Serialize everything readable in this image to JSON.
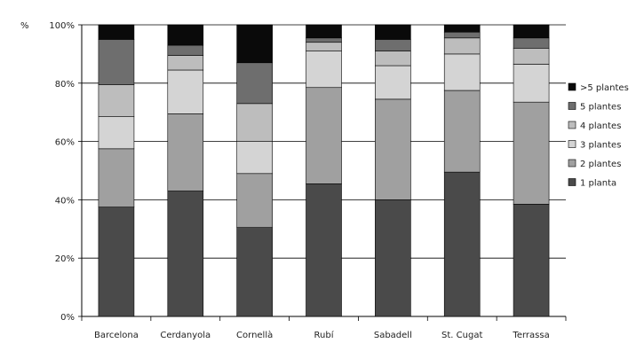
{
  "chart_data": {
    "type": "bar",
    "stacked": true,
    "ylabel": "%",
    "ylim": [
      0,
      100
    ],
    "yticks": [
      "0%",
      "20%",
      "40%",
      "60%",
      "80%",
      "100%"
    ],
    "grid": true,
    "legend_position": "right",
    "categories": [
      "Barcelona",
      "Cerdanyola",
      "Cornellà",
      "Rubí",
      "Sabadell",
      "St. Cugat",
      "Terrassa"
    ],
    "series": [
      {
        "name": "1 planta",
        "color": "#4a4a4a",
        "values": [
          37.5,
          43.0,
          30.5,
          45.5,
          40.0,
          49.5,
          38.5
        ]
      },
      {
        "name": "2 plantes",
        "color": "#a0a0a0",
        "values": [
          20.0,
          26.5,
          18.5,
          33.0,
          34.5,
          28.0,
          35.0
        ]
      },
      {
        "name": "3 plantes",
        "color": "#d4d4d4",
        "values": [
          11.0,
          15.0,
          11.0,
          12.5,
          11.5,
          12.5,
          13.0
        ]
      },
      {
        "name": "4 plantes",
        "color": "#bdbdbd",
        "values": [
          11.0,
          5.0,
          13.0,
          3.0,
          5.0,
          5.5,
          5.5
        ]
      },
      {
        "name": "5 plantes",
        "color": "#6e6e6e",
        "values": [
          15.5,
          3.5,
          14.0,
          1.5,
          4.0,
          2.0,
          3.5
        ]
      },
      {
        "name": ">5 plantes",
        "color": "#0a0a0a",
        "values": [
          5.0,
          7.0,
          13.0,
          4.5,
          5.0,
          2.5,
          4.5
        ]
      }
    ]
  }
}
